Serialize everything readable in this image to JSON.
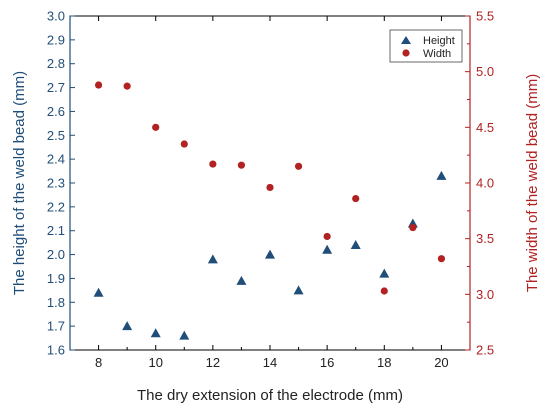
{
  "chart_data": {
    "type": "scatter",
    "title": "",
    "xlabel": "The dry extension of the electrode (mm)",
    "ylabel_left": "The height of the weld bead (mm)",
    "ylabel_right": "The width of the weld bead (mm)",
    "xlim": [
      7,
      21
    ],
    "ylim_left": [
      1.6,
      3.0
    ],
    "ylim_right": [
      2.5,
      5.5
    ],
    "x_ticks": [
      8,
      10,
      12,
      14,
      16,
      18,
      20
    ],
    "y_ticks_left": [
      "1.6",
      "1.7",
      "1.8",
      "1.9",
      "2.0",
      "2.1",
      "2.2",
      "2.3",
      "2.4",
      "2.5",
      "2.6",
      "2.7",
      "2.8",
      "2.9",
      "3.0"
    ],
    "y_ticks_right": [
      "2.5",
      "3.0",
      "3.5",
      "4.0",
      "4.5",
      "5.0",
      "5.5"
    ],
    "grid": false,
    "legend_position": "top-right",
    "colors": {
      "height": "#1f4e79",
      "width": "#b22222",
      "left_axis": "#1f4e79",
      "right_axis": "#b22222"
    },
    "series": [
      {
        "name": "Height",
        "axis": "left",
        "marker": "triangle",
        "x": [
          8,
          9,
          10,
          11,
          12,
          13,
          14,
          15,
          16,
          17,
          18,
          19,
          20
        ],
        "y": [
          1.84,
          1.7,
          1.67,
          1.66,
          1.98,
          1.89,
          2.0,
          1.85,
          2.02,
          2.04,
          1.92,
          2.13,
          2.33
        ]
      },
      {
        "name": "Width",
        "axis": "right",
        "marker": "circle",
        "x": [
          8,
          9,
          10,
          11,
          12,
          13,
          14,
          15,
          16,
          17,
          18,
          19,
          20
        ],
        "y": [
          4.88,
          4.87,
          4.5,
          4.35,
          4.17,
          4.16,
          3.96,
          4.15,
          3.52,
          3.86,
          3.03,
          3.6,
          3.32
        ]
      }
    ]
  }
}
